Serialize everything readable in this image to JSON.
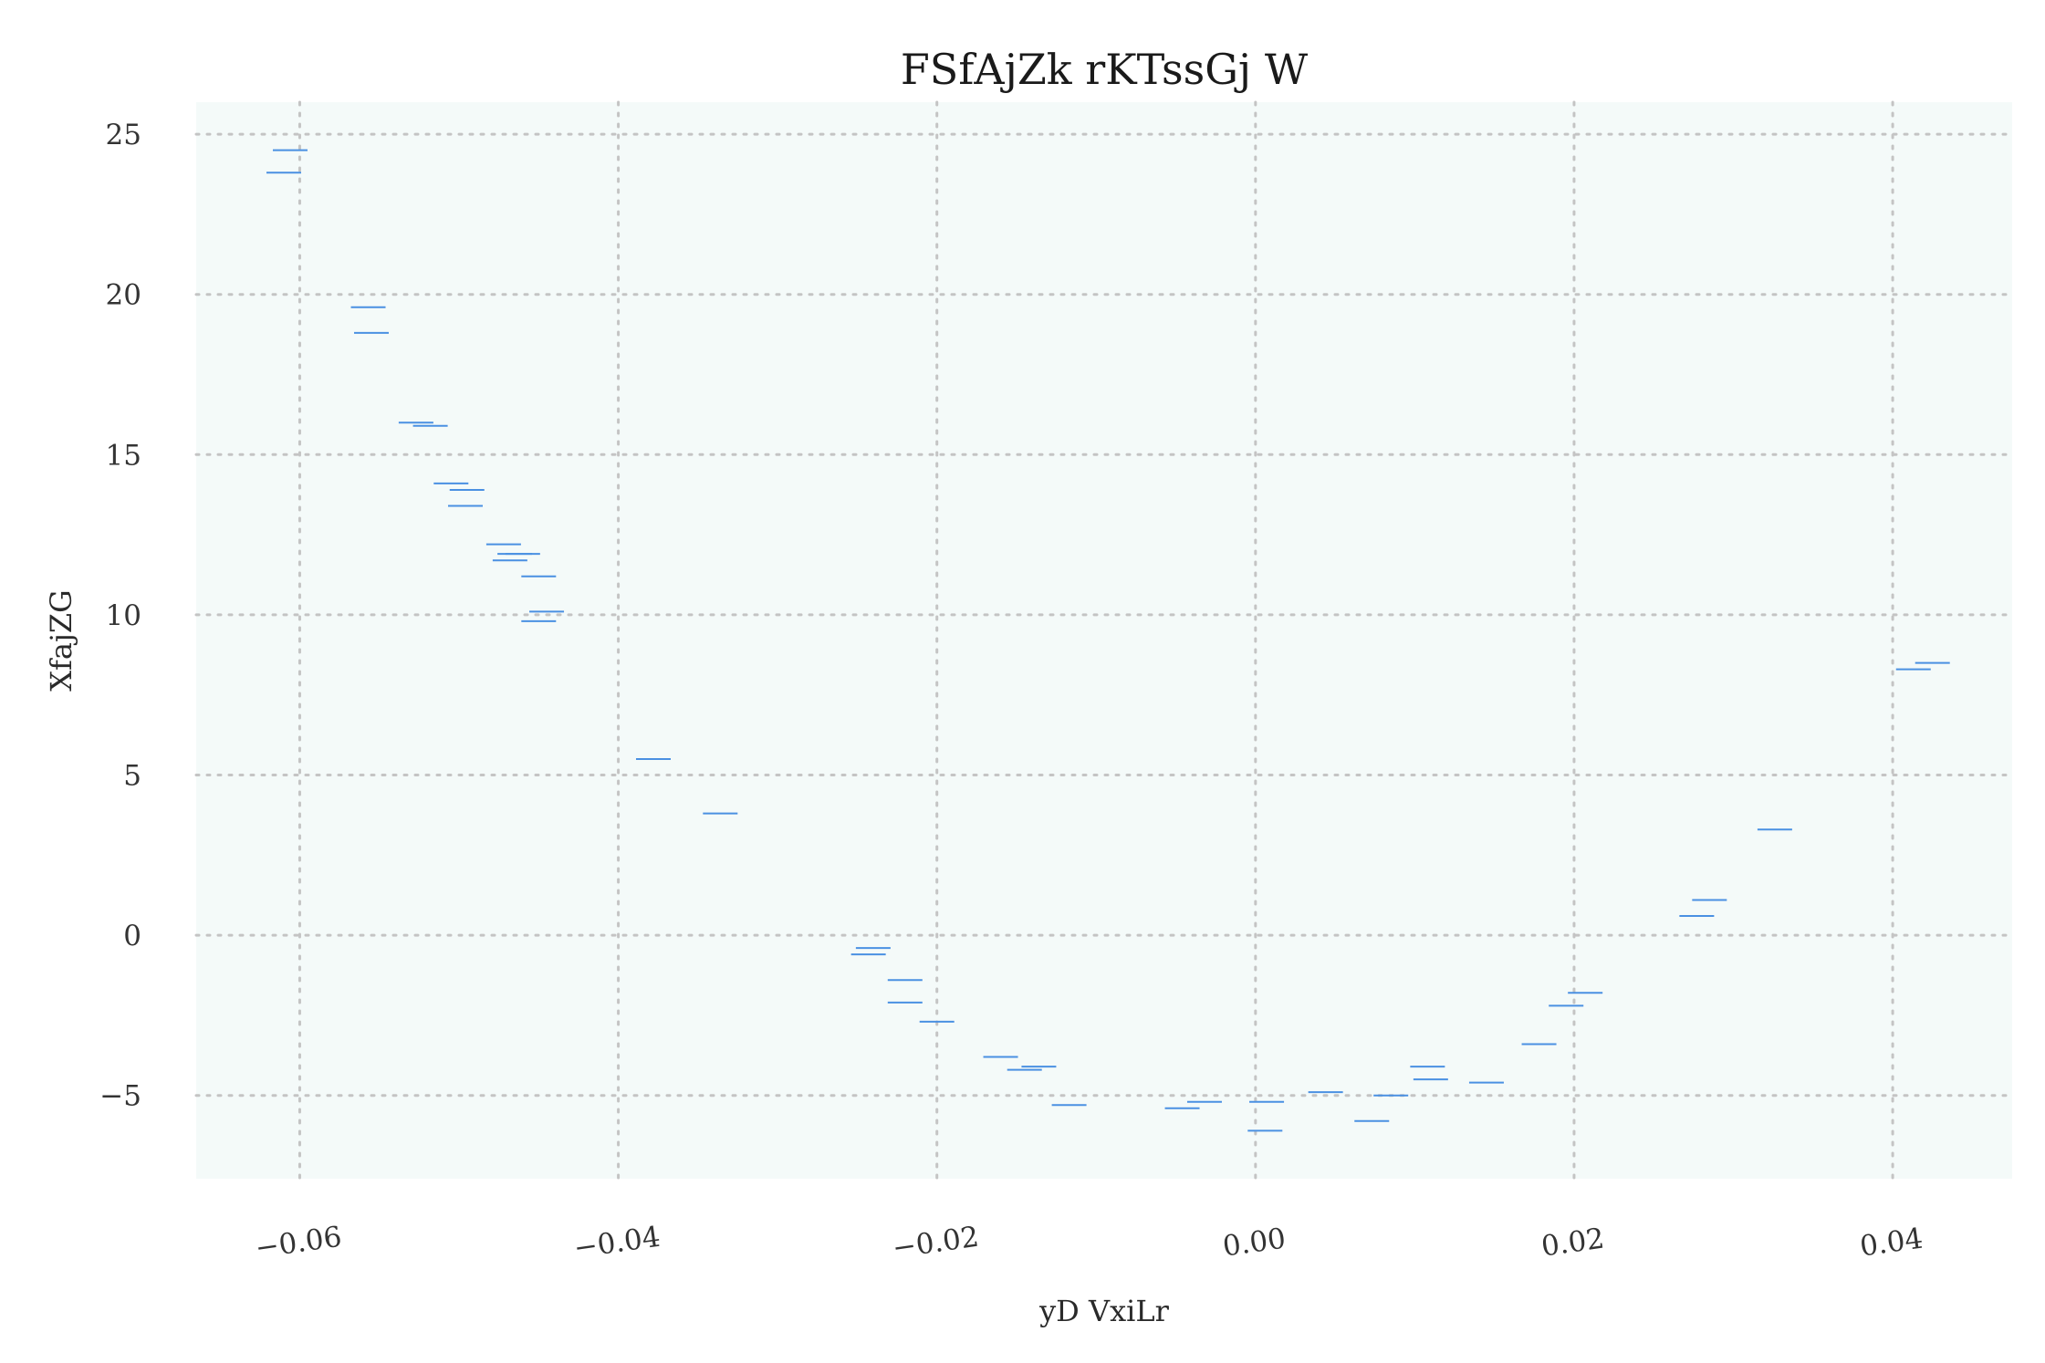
{
  "chart_data": {
    "type": "scatter",
    "marker": "hline",
    "title": "FSfAjZk rKTssGj  W",
    "xlabel": "yD VxiLr",
    "ylabel": "XfajZG",
    "xlim": [
      -0.0665,
      0.0475
    ],
    "ylim": [
      -7.6,
      26.0
    ],
    "xticks": [
      -0.06,
      -0.04,
      -0.02,
      0.0,
      0.02,
      0.04
    ],
    "xtick_labels": [
      "−0.06",
      "−0.04",
      "−0.02",
      "0.00",
      "0.02",
      "0.04"
    ],
    "yticks": [
      -5,
      0,
      5,
      10,
      15,
      20,
      25
    ],
    "ytick_labels": [
      "−5",
      "0",
      "5",
      "10",
      "15",
      "20",
      "25"
    ],
    "grid": true,
    "series": [
      {
        "color": "#4a90e2",
        "x": [
          -0.0606,
          -0.061,
          -0.0557,
          -0.0555,
          -0.0527,
          -0.0518,
          -0.0505,
          -0.0495,
          -0.0496,
          -0.0472,
          -0.0465,
          -0.046,
          -0.0468,
          -0.045,
          -0.0445,
          -0.045,
          -0.0378,
          -0.0336,
          -0.024,
          -0.0243,
          -0.022,
          -0.022,
          -0.02,
          -0.016,
          -0.0136,
          -0.0145,
          -0.0117,
          -0.0046,
          -0.0032,
          0.0007,
          0.0006,
          0.0044,
          0.0073,
          0.0085,
          0.0108,
          0.011,
          0.0145,
          0.0178,
          0.0207,
          0.0195,
          0.0285,
          0.0277,
          0.0326,
          0.0413,
          0.0425
        ],
        "y": [
          24.5,
          23.8,
          19.6,
          18.8,
          16.0,
          15.9,
          14.1,
          13.9,
          13.4,
          12.2,
          11.9,
          11.9,
          11.7,
          11.2,
          10.1,
          9.8,
          5.5,
          3.8,
          -0.4,
          -0.6,
          -1.4,
          -2.1,
          -2.7,
          -3.8,
          -4.1,
          -4.2,
          -5.3,
          -5.4,
          -5.2,
          -5.2,
          -6.1,
          -4.9,
          -5.8,
          -5.0,
          -4.1,
          -4.5,
          -4.6,
          -3.4,
          -1.8,
          -2.2,
          1.1,
          0.6,
          3.3,
          8.3,
          8.5
        ]
      }
    ]
  }
}
